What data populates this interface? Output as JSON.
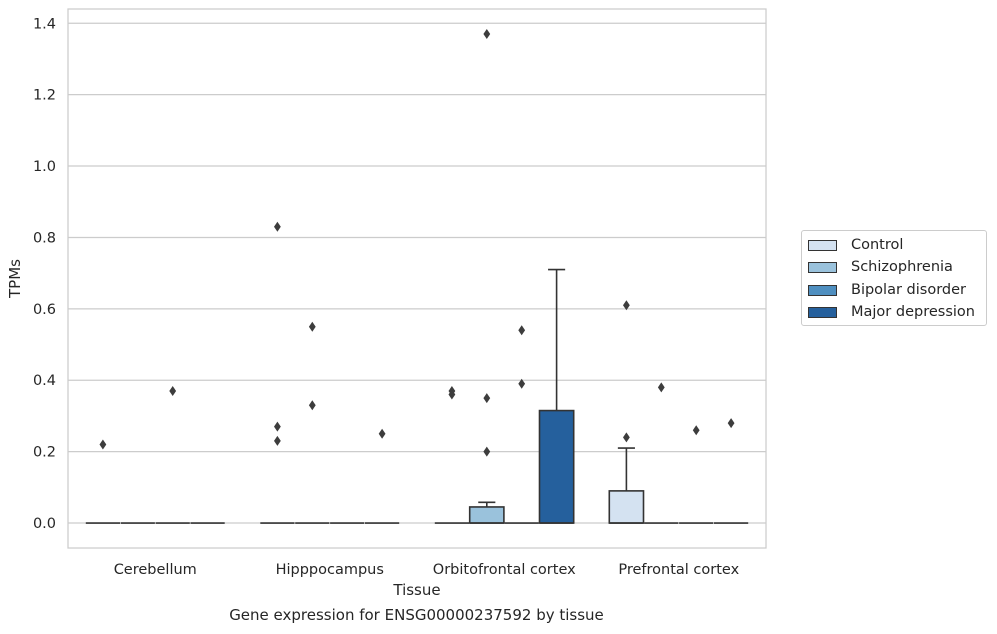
{
  "caption": "Gene expression for ENSG00000237592 by tissue",
  "chart_data": {
    "type": "box",
    "title": "",
    "xlabel": "Tissue",
    "ylabel": "TPMs",
    "ylim": [
      -0.07,
      1.44
    ],
    "yticks": [
      0.0,
      0.2,
      0.4,
      0.6,
      0.8,
      1.0,
      1.2,
      1.4
    ],
    "ytick_labels": [
      "0.0",
      "0.2",
      "0.4",
      "0.6",
      "0.8",
      "1.0",
      "1.2",
      "1.4"
    ],
    "grid": "horizontal",
    "legend_position": "right",
    "categories": [
      "Cerebellum",
      "Hipppocampus",
      "Orbitofrontal cortex",
      "Prefrontal cortex"
    ],
    "series": [
      {
        "name": "Control",
        "color": "#d4e2f1",
        "boxes": [
          {
            "q1": 0,
            "median": 0,
            "q3": 0,
            "whisker_low": 0,
            "whisker_high": 0,
            "outliers": [
              0.22
            ]
          },
          {
            "q1": 0,
            "median": 0,
            "q3": 0,
            "whisker_low": 0,
            "whisker_high": 0,
            "outliers": [
              0.83,
              0.27,
              0.23
            ]
          },
          {
            "q1": 0,
            "median": 0,
            "q3": 0,
            "whisker_low": 0,
            "whisker_high": 0,
            "outliers": [
              0.37,
              0.36
            ]
          },
          {
            "q1": 0,
            "median": 0,
            "q3": 0.09,
            "whisker_low": 0,
            "whisker_high": 0.21,
            "outliers": [
              0.61,
              0.24
            ]
          }
        ]
      },
      {
        "name": "Schizophrenia",
        "color": "#9ac2dc",
        "boxes": [
          {
            "q1": 0,
            "median": 0,
            "q3": 0,
            "whisker_low": 0,
            "whisker_high": 0,
            "outliers": []
          },
          {
            "q1": 0,
            "median": 0,
            "q3": 0,
            "whisker_low": 0,
            "whisker_high": 0,
            "outliers": [
              0.55,
              0.33
            ]
          },
          {
            "q1": 0,
            "median": 0,
            "q3": 0.045,
            "whisker_low": 0,
            "whisker_high": 0.058,
            "outliers": [
              1.37,
              0.35,
              0.2
            ]
          },
          {
            "q1": 0,
            "median": 0,
            "q3": 0,
            "whisker_low": 0,
            "whisker_high": 0,
            "outliers": [
              0.38
            ]
          }
        ]
      },
      {
        "name": "Bipolar disorder",
        "color": "#4f8fc0",
        "boxes": [
          {
            "q1": 0,
            "median": 0,
            "q3": 0,
            "whisker_low": 0,
            "whisker_high": 0,
            "outliers": [
              0.37
            ]
          },
          {
            "q1": 0,
            "median": 0,
            "q3": 0,
            "whisker_low": 0,
            "whisker_high": 0,
            "outliers": []
          },
          {
            "q1": 0,
            "median": 0,
            "q3": 0,
            "whisker_low": 0,
            "whisker_high": 0,
            "outliers": [
              0.54,
              0.39
            ]
          },
          {
            "q1": 0,
            "median": 0,
            "q3": 0,
            "whisker_low": 0,
            "whisker_high": 0,
            "outliers": [
              0.26
            ]
          }
        ]
      },
      {
        "name": "Major depression",
        "color": "#25609d",
        "boxes": [
          {
            "q1": 0,
            "median": 0,
            "q3": 0,
            "whisker_low": 0,
            "whisker_high": 0,
            "outliers": []
          },
          {
            "q1": 0,
            "median": 0,
            "q3": 0,
            "whisker_low": 0,
            "whisker_high": 0,
            "outliers": [
              0.25
            ]
          },
          {
            "q1": 0,
            "median": 0,
            "q3": 0.315,
            "whisker_low": 0,
            "whisker_high": 0.71,
            "outliers": []
          },
          {
            "q1": 0,
            "median": 0,
            "q3": 0,
            "whisker_low": 0,
            "whisker_high": 0,
            "outliers": [
              0.28
            ]
          }
        ]
      }
    ]
  }
}
